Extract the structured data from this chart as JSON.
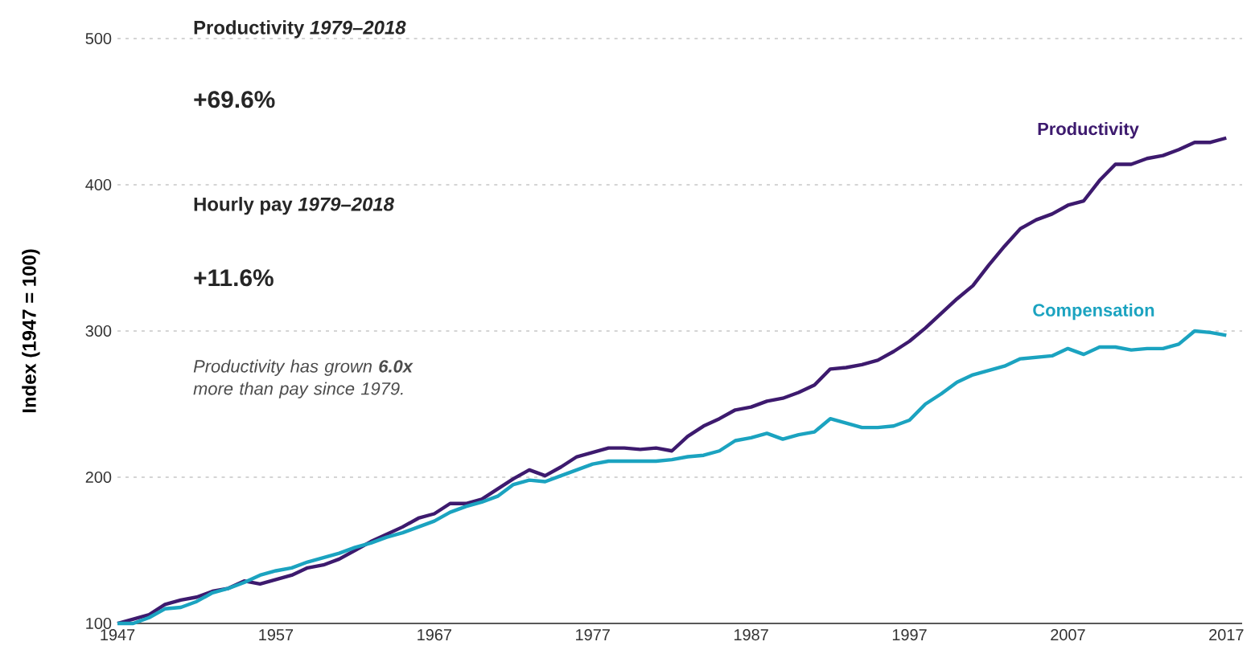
{
  "chart_data": {
    "type": "line",
    "ylabel": "Index (1947 = 100)",
    "annotations": [
      "**Productivity** *1979–2018*",
      "+69.6%",
      "**Hourly pay** *1979–2018*",
      "+11.6%",
      "Productivity has grown **6.0x** more than pay since 1979."
    ],
    "x": [
      1947,
      1948,
      1949,
      1950,
      1951,
      1952,
      1953,
      1954,
      1955,
      1956,
      1957,
      1958,
      1959,
      1960,
      1961,
      1962,
      1963,
      1964,
      1965,
      1966,
      1967,
      1968,
      1969,
      1970,
      1971,
      1972,
      1973,
      1974,
      1975,
      1976,
      1977,
      1978,
      1979,
      1980,
      1981,
      1982,
      1983,
      1984,
      1985,
      1986,
      1987,
      1988,
      1989,
      1990,
      1991,
      1992,
      1993,
      1994,
      1995,
      1996,
      1997,
      1998,
      1999,
      2000,
      2001,
      2002,
      2003,
      2004,
      2005,
      2006,
      2007,
      2008,
      2009,
      2010,
      2011,
      2012,
      2013,
      2014,
      2015,
      2016,
      2017
    ],
    "series": [
      {
        "name": "Productivity",
        "color": "#3d1a6e",
        "values": [
          100,
          103,
          106,
          113,
          116,
          118,
          122,
          124,
          129,
          127,
          130,
          133,
          138,
          140,
          144,
          150,
          156,
          161,
          166,
          172,
          175,
          182,
          182,
          185,
          192,
          199,
          205,
          201,
          207,
          214,
          217,
          220,
          220,
          219,
          220,
          218,
          228,
          235,
          240,
          246,
          248,
          252,
          254,
          258,
          263,
          274,
          275,
          277,
          280,
          286,
          293,
          302,
          312,
          322,
          331,
          345,
          358,
          370,
          376,
          380,
          386,
          389,
          403,
          414,
          414,
          418,
          420,
          424,
          429,
          429,
          432
        ]
      },
      {
        "name": "Compensation",
        "color": "#1ba3c0",
        "values": [
          100,
          100,
          104,
          110,
          111,
          115,
          121,
          124,
          128,
          133,
          136,
          138,
          142,
          145,
          148,
          152,
          155,
          159,
          162,
          166,
          170,
          176,
          180,
          183,
          187,
          195,
          198,
          197,
          201,
          205,
          209,
          211,
          211,
          211,
          211,
          212,
          214,
          215,
          218,
          225,
          227,
          230,
          226,
          229,
          231,
          240,
          237,
          234,
          234,
          235,
          239,
          250,
          257,
          265,
          270,
          273,
          276,
          281,
          282,
          283,
          288,
          284,
          289,
          289,
          287,
          288,
          288,
          291,
          300,
          299,
          297
        ]
      }
    ],
    "xlim": [
      1947,
      2018
    ],
    "ylim": [
      100,
      500
    ],
    "xticks": [
      1947,
      1957,
      1967,
      1977,
      1987,
      1997,
      2007,
      2017
    ],
    "yticks": [
      100,
      200,
      300,
      400,
      500
    ],
    "grid": "y",
    "line_style": "solid"
  }
}
